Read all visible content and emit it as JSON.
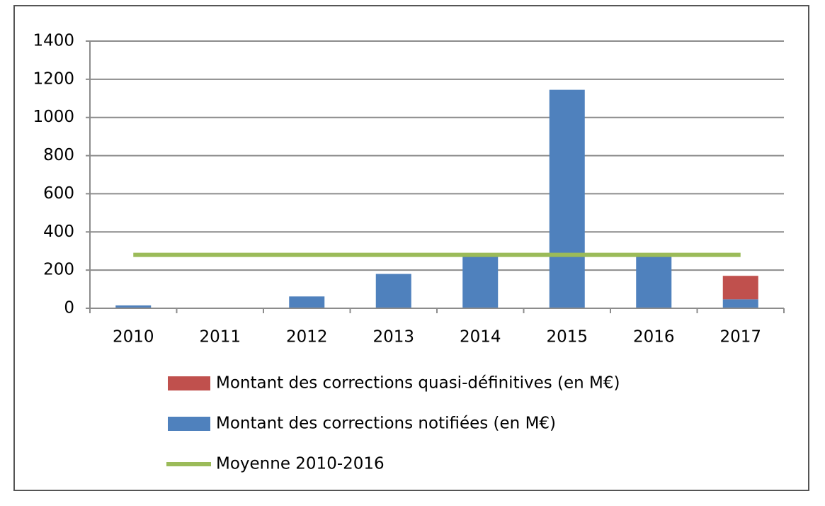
{
  "chart_data": {
    "type": "bar",
    "categories": [
      "2010",
      "2011",
      "2012",
      "2013",
      "2014",
      "2015",
      "2016",
      "2017"
    ],
    "series": [
      {
        "name": "Montant des corrections notifiées (en M€)",
        "color": "#4f81bd",
        "values": [
          15,
          0,
          62,
          180,
          270,
          1145,
          270,
          47
        ]
      },
      {
        "name": "Montant des corrections quasi-définitives (en M€)",
        "color": "#c0504d",
        "values": [
          0,
          0,
          0,
          0,
          0,
          0,
          0,
          123
        ]
      },
      {
        "name": "Moyenne 2010-2016",
        "type": "line",
        "color": "#9bbb59",
        "values": [
          280,
          280,
          280,
          280,
          280,
          280,
          280,
          280
        ]
      }
    ],
    "stacked": true,
    "ylim": [
      0,
      1400
    ],
    "yticks": [
      0,
      200,
      400,
      600,
      800,
      1000,
      1200,
      1400
    ],
    "grid": true
  }
}
